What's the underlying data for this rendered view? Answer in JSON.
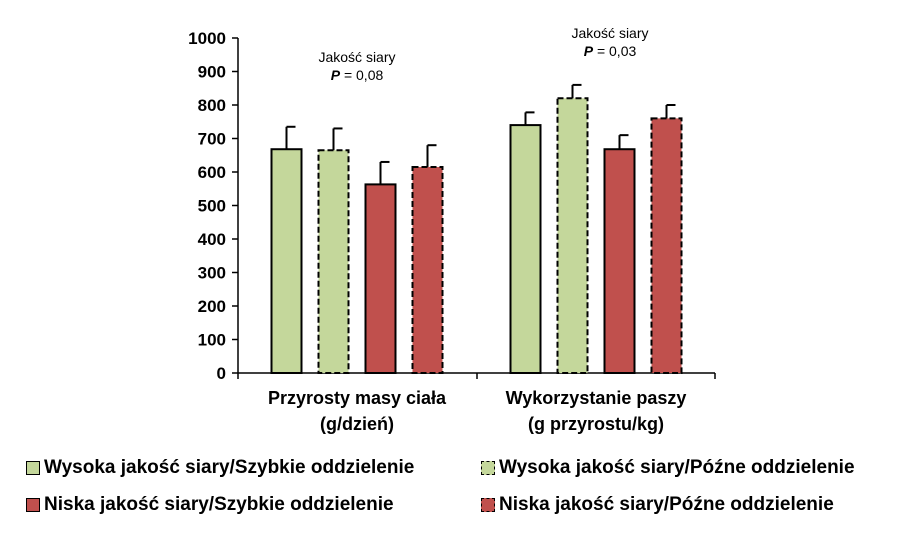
{
  "chart_data": {
    "type": "bar",
    "categories": [
      [
        "Przyrosty masy ciała",
        "(g/dzień)"
      ],
      [
        "Wykorzystanie paszy",
        "(g przyrostu/kg)"
      ]
    ],
    "series": [
      {
        "name": "Wysoka jakość siary/Szybkie oddzielenie",
        "color": "#c4d79b",
        "border": "solid",
        "values": [
          668,
          740
        ],
        "errors": [
          67,
          38
        ]
      },
      {
        "name": "Wysoka jakość siary/Późne oddzielenie",
        "color": "#c4d79b",
        "border": "dashed",
        "values": [
          665,
          820
        ],
        "errors": [
          65,
          40
        ]
      },
      {
        "name": "Niska jakość siary/Szybkie oddzielenie",
        "color": "#c0504d",
        "border": "solid",
        "values": [
          563,
          668
        ],
        "errors": [
          67,
          42
        ]
      },
      {
        "name": "Niska jakość siary/Późne oddzielenie",
        "color": "#c0504d",
        "border": "dashed",
        "values": [
          615,
          760
        ],
        "errors": [
          65,
          40
        ]
      }
    ],
    "yticks": [
      0,
      100,
      200,
      300,
      400,
      500,
      600,
      700,
      800,
      900,
      1000
    ],
    "ylim": [
      0,
      1000
    ],
    "annotations": [
      {
        "group": 0,
        "line1": "Jakość siary",
        "p_label": "P",
        "p_value": " = 0,08"
      },
      {
        "group": 1,
        "line1": "Jakość siary",
        "p_label": "P",
        "p_value": " = 0,03"
      }
    ],
    "legend_position": "bottom",
    "grid": false
  }
}
